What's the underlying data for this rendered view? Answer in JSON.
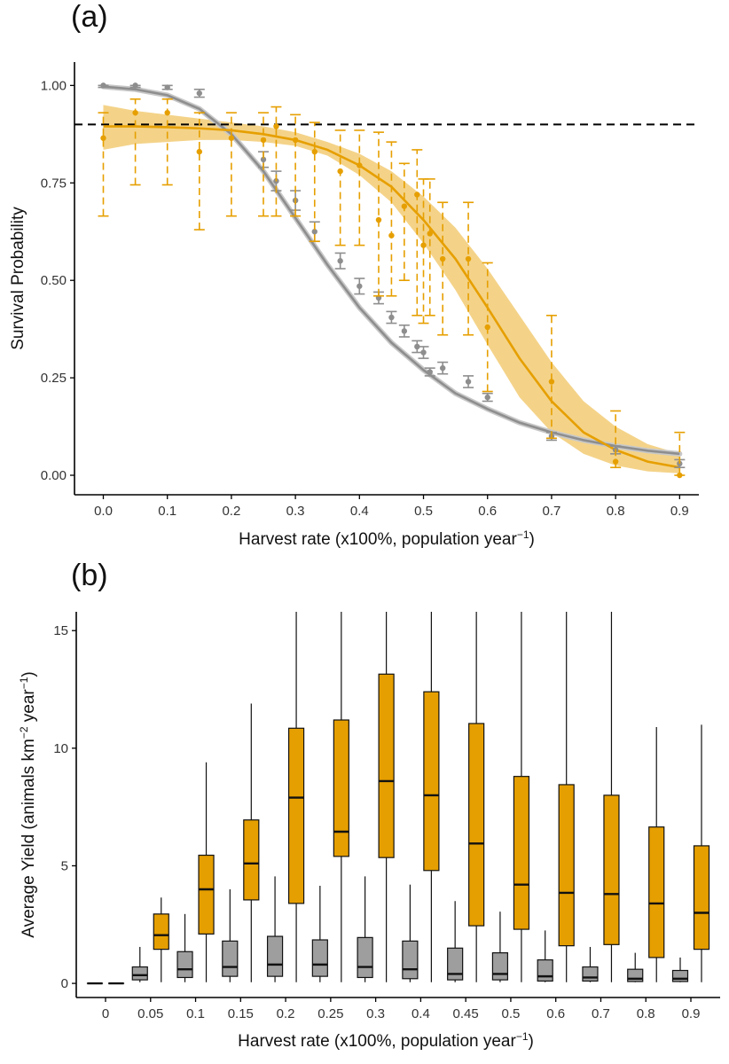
{
  "colors": {
    "orange": "#E69F00",
    "orange_band": "#F2CB74",
    "gray": "#8E8E8E",
    "gray_band": "#C8C8C8",
    "box_gray": "#9E9E9E",
    "axis": "#000000"
  },
  "chart_data": [
    {
      "panel": "(a)",
      "type": "scatter",
      "xlabel_main": "Harvest rate (x100%, population year",
      "xlabel_sup": "−1",
      "xlabel_end": ")",
      "ylabel": "Survival Probability",
      "xlim": [
        -0.045,
        0.93
      ],
      "ylim": [
        -0.05,
        1.06
      ],
      "xticks": [
        0,
        0.1,
        0.2,
        0.3,
        0.4,
        0.5,
        0.6,
        0.7,
        0.8,
        0.9
      ],
      "xtick_labels": [
        "0.0",
        "0.1",
        "0.2",
        "0.3",
        "0.4",
        "0.5",
        "0.6",
        "0.7",
        "0.8",
        "0.9"
      ],
      "yticks": [
        0,
        0.25,
        0.5,
        0.75,
        1.0
      ],
      "ytick_labels": [
        "0.00",
        "0.25",
        "0.50",
        "0.75",
        "1.00"
      ],
      "reference_line": {
        "y": 0.9,
        "style": "dashed"
      },
      "series": [
        {
          "name": "gray",
          "color_key": "gray",
          "points": [
            {
              "x": 0.0,
              "y": 1.0,
              "lo": 0.995,
              "hi": 1.0
            },
            {
              "x": 0.05,
              "y": 1.0,
              "lo": 0.995,
              "hi": 1.0
            },
            {
              "x": 0.1,
              "y": 0.995,
              "lo": 0.99,
              "hi": 1.0
            },
            {
              "x": 0.15,
              "y": 0.98,
              "lo": 0.97,
              "hi": 0.99
            },
            {
              "x": 0.25,
              "y": 0.81,
              "lo": 0.79,
              "hi": 0.83
            },
            {
              "x": 0.27,
              "y": 0.755,
              "lo": 0.73,
              "hi": 0.78
            },
            {
              "x": 0.3,
              "y": 0.705,
              "lo": 0.68,
              "hi": 0.73
            },
            {
              "x": 0.33,
              "y": 0.625,
              "lo": 0.6,
              "hi": 0.65
            },
            {
              "x": 0.37,
              "y": 0.55,
              "lo": 0.53,
              "hi": 0.57
            },
            {
              "x": 0.4,
              "y": 0.485,
              "lo": 0.465,
              "hi": 0.505
            },
            {
              "x": 0.43,
              "y": 0.455,
              "lo": 0.44,
              "hi": 0.47
            },
            {
              "x": 0.45,
              "y": 0.405,
              "lo": 0.39,
              "hi": 0.42
            },
            {
              "x": 0.47,
              "y": 0.37,
              "lo": 0.355,
              "hi": 0.385
            },
            {
              "x": 0.49,
              "y": 0.33,
              "lo": 0.315,
              "hi": 0.345
            },
            {
              "x": 0.5,
              "y": 0.315,
              "lo": 0.3,
              "hi": 0.33
            },
            {
              "x": 0.51,
              "y": 0.265,
              "lo": 0.255,
              "hi": 0.275
            },
            {
              "x": 0.53,
              "y": 0.275,
              "lo": 0.26,
              "hi": 0.29
            },
            {
              "x": 0.57,
              "y": 0.24,
              "lo": 0.225,
              "hi": 0.255
            },
            {
              "x": 0.6,
              "y": 0.2,
              "lo": 0.19,
              "hi": 0.21
            },
            {
              "x": 0.7,
              "y": 0.1,
              "lo": 0.09,
              "hi": 0.11
            },
            {
              "x": 0.8,
              "y": 0.065,
              "lo": 0.055,
              "hi": 0.075
            },
            {
              "x": 0.9,
              "y": 0.03,
              "lo": 0.02,
              "hi": 0.04
            }
          ],
          "fit": {
            "x": [
              0,
              0.05,
              0.1,
              0.15,
              0.2,
              0.25,
              0.3,
              0.35,
              0.4,
              0.45,
              0.5,
              0.55,
              0.6,
              0.65,
              0.7,
              0.75,
              0.8,
              0.85,
              0.9
            ],
            "y": [
              0.997,
              0.99,
              0.975,
              0.94,
              0.875,
              0.78,
              0.66,
              0.54,
              0.43,
              0.34,
              0.27,
              0.21,
              0.17,
              0.135,
              0.11,
              0.09,
              0.075,
              0.063,
              0.055
            ]
          }
        },
        {
          "name": "orange",
          "color_key": "orange",
          "points": [
            {
              "x": 0.0,
              "y": 0.865,
              "lo": 0.665,
              "hi": 0.93
            },
            {
              "x": 0.05,
              "y": 0.93,
              "lo": 0.745,
              "hi": 0.965
            },
            {
              "x": 0.1,
              "y": 0.93,
              "lo": 0.745,
              "hi": 0.965
            },
            {
              "x": 0.15,
              "y": 0.83,
              "lo": 0.63,
              "hi": 0.93
            },
            {
              "x": 0.2,
              "y": 0.865,
              "lo": 0.665,
              "hi": 0.93
            },
            {
              "x": 0.25,
              "y": 0.86,
              "lo": 0.665,
              "hi": 0.93
            },
            {
              "x": 0.27,
              "y": 0.895,
              "lo": 0.665,
              "hi": 0.945
            },
            {
              "x": 0.3,
              "y": 0.86,
              "lo": 0.665,
              "hi": 0.925
            },
            {
              "x": 0.33,
              "y": 0.83,
              "lo": 0.6,
              "hi": 0.905
            },
            {
              "x": 0.37,
              "y": 0.78,
              "lo": 0.59,
              "hi": 0.885
            },
            {
              "x": 0.4,
              "y": 0.795,
              "lo": 0.59,
              "hi": 0.885
            },
            {
              "x": 0.43,
              "y": 0.655,
              "lo": 0.46,
              "hi": 0.88
            },
            {
              "x": 0.45,
              "y": 0.615,
              "lo": 0.46,
              "hi": 0.855
            },
            {
              "x": 0.47,
              "y": 0.69,
              "lo": 0.5,
              "hi": 0.8
            },
            {
              "x": 0.49,
              "y": 0.72,
              "lo": 0.41,
              "hi": 0.835
            },
            {
              "x": 0.5,
              "y": 0.59,
              "lo": 0.39,
              "hi": 0.76
            },
            {
              "x": 0.51,
              "y": 0.62,
              "lo": 0.41,
              "hi": 0.76
            },
            {
              "x": 0.53,
              "y": 0.555,
              "lo": 0.36,
              "hi": 0.7
            },
            {
              "x": 0.57,
              "y": 0.555,
              "lo": 0.36,
              "hi": 0.7
            },
            {
              "x": 0.6,
              "y": 0.38,
              "lo": 0.215,
              "hi": 0.545
            },
            {
              "x": 0.7,
              "y": 0.24,
              "lo": 0.095,
              "hi": 0.41
            },
            {
              "x": 0.8,
              "y": 0.035,
              "lo": 0.02,
              "hi": 0.165
            },
            {
              "x": 0.9,
              "y": 0.0,
              "lo": 0.0,
              "hi": 0.11
            }
          ],
          "fit": {
            "x": [
              0,
              0.05,
              0.1,
              0.15,
              0.2,
              0.25,
              0.3,
              0.35,
              0.4,
              0.45,
              0.5,
              0.55,
              0.6,
              0.65,
              0.7,
              0.75,
              0.8,
              0.85,
              0.9
            ],
            "y": [
              0.895,
              0.895,
              0.893,
              0.89,
              0.885,
              0.875,
              0.86,
              0.835,
              0.795,
              0.74,
              0.655,
              0.555,
              0.43,
              0.3,
              0.19,
              0.11,
              0.065,
              0.035,
              0.02
            ],
            "band_lo": [
              0.835,
              0.85,
              0.855,
              0.86,
              0.86,
              0.855,
              0.845,
              0.82,
              0.77,
              0.7,
              0.595,
              0.475,
              0.335,
              0.2,
              0.11,
              0.055,
              0.025,
              0.01,
              0.005
            ],
            "band_hi": [
              0.95,
              0.935,
              0.925,
              0.915,
              0.905,
              0.895,
              0.88,
              0.855,
              0.825,
              0.78,
              0.715,
              0.635,
              0.53,
              0.41,
              0.29,
              0.19,
              0.125,
              0.08,
              0.055
            ]
          }
        }
      ]
    },
    {
      "panel": "(b)",
      "type": "box",
      "xlabel_main": "Harvest rate (x100%, population year",
      "xlabel_sup": "−1",
      "xlabel_end": ")",
      "ylabel_main": "Average Yield (animals  km",
      "ylabel_sup1": "−2",
      "ylabel_mid": " year",
      "ylabel_sup2": "−1",
      "ylabel_end": ")",
      "ylim": [
        -0.6,
        15.8
      ],
      "yticks": [
        0,
        5,
        10,
        15
      ],
      "ytick_labels": [
        "0",
        "5",
        "10",
        "15"
      ],
      "categories": [
        "0",
        "0.05",
        "0.1",
        "0.15",
        "0.2",
        "0.25",
        "0.3",
        "0.4",
        "0.45",
        "0.5",
        "0.6",
        "0.7",
        "0.8",
        "0.9"
      ],
      "series": [
        {
          "name": "gray",
          "color_key": "box_gray",
          "boxes": [
            {
              "min": 0,
              "q1": 0,
              "median": 0,
              "q3": 0,
              "max": 0
            },
            {
              "min": 0.05,
              "q1": 0.15,
              "median": 0.35,
              "q3": 0.7,
              "max": 1.55
            },
            {
              "min": 0.05,
              "q1": 0.25,
              "median": 0.6,
              "q3": 1.35,
              "max": 2.95
            },
            {
              "min": 0.05,
              "q1": 0.3,
              "median": 0.7,
              "q3": 1.8,
              "max": 4.0
            },
            {
              "min": 0.05,
              "q1": 0.3,
              "median": 0.8,
              "q3": 2.0,
              "max": 4.55
            },
            {
              "min": 0.05,
              "q1": 0.3,
              "median": 0.8,
              "q3": 1.85,
              "max": 4.15
            },
            {
              "min": 0.05,
              "q1": 0.25,
              "median": 0.7,
              "q3": 1.95,
              "max": 4.55
            },
            {
              "min": 0.05,
              "q1": 0.2,
              "median": 0.6,
              "q3": 1.8,
              "max": 4.2
            },
            {
              "min": 0.05,
              "q1": 0.15,
              "median": 0.4,
              "q3": 1.5,
              "max": 3.5
            },
            {
              "min": 0.05,
              "q1": 0.15,
              "median": 0.4,
              "q3": 1.3,
              "max": 3.05
            },
            {
              "min": 0.05,
              "q1": 0.1,
              "median": 0.3,
              "q3": 1.0,
              "max": 2.25
            },
            {
              "min": 0.05,
              "q1": 0.1,
              "median": 0.25,
              "q3": 0.7,
              "max": 1.55
            },
            {
              "min": 0.05,
              "q1": 0.08,
              "median": 0.2,
              "q3": 0.6,
              "max": 1.3
            },
            {
              "min": 0.05,
              "q1": 0.08,
              "median": 0.2,
              "q3": 0.55,
              "max": 1.1
            }
          ]
        },
        {
          "name": "orange",
          "color_key": "orange",
          "boxes": [
            {
              "min": 0,
              "q1": 0,
              "median": 0,
              "q3": 0,
              "max": 0
            },
            {
              "min": 0.05,
              "q1": 1.45,
              "median": 2.05,
              "q3": 2.95,
              "max": 3.65
            },
            {
              "min": 0.05,
              "q1": 2.1,
              "median": 4.0,
              "q3": 5.45,
              "max": 9.4
            },
            {
              "min": 0.05,
              "q1": 3.55,
              "median": 5.1,
              "q3": 6.95,
              "max": 11.9
            },
            {
              "min": 0.05,
              "q1": 3.4,
              "median": 7.9,
              "q3": 10.85,
              "max": 15.8
            },
            {
              "min": 0.05,
              "q1": 5.4,
              "median": 6.45,
              "q3": 11.2,
              "max": 15.8
            },
            {
              "min": 0.05,
              "q1": 5.35,
              "median": 8.6,
              "q3": 13.15,
              "max": 15.8
            },
            {
              "min": 0.05,
              "q1": 4.8,
              "median": 8.0,
              "q3": 12.4,
              "max": 15.8
            },
            {
              "min": 0.05,
              "q1": 2.45,
              "median": 5.95,
              "q3": 11.05,
              "max": 15.8
            },
            {
              "min": 0.05,
              "q1": 2.3,
              "median": 4.2,
              "q3": 8.8,
              "max": 15.8
            },
            {
              "min": 0.05,
              "q1": 1.6,
              "median": 3.85,
              "q3": 8.45,
              "max": 15.8
            },
            {
              "min": 0.05,
              "q1": 1.65,
              "median": 3.8,
              "q3": 8.0,
              "max": 15.8
            },
            {
              "min": 0.05,
              "q1": 1.1,
              "median": 3.4,
              "q3": 6.65,
              "max": 10.9
            },
            {
              "min": 0.05,
              "q1": 1.45,
              "median": 3.0,
              "q3": 5.85,
              "max": 11.0
            }
          ]
        }
      ]
    }
  ]
}
